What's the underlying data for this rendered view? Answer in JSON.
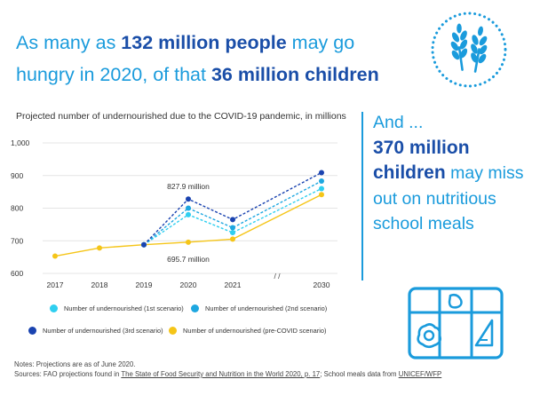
{
  "headline": {
    "part1": "As many as ",
    "bold1": "132 million people",
    "part2": " may go hungry in 2020, of that ",
    "bold2": "36 million children"
  },
  "side": {
    "line1": "And ...",
    "bold": "370 million children",
    "rest": " may miss out on nutritious school meals"
  },
  "icons": {
    "badge": "wheat-icon",
    "meal": "school-meal-tray-icon"
  },
  "colors": {
    "accent_light": "#1a9bdc",
    "accent_dark": "#1a4ea8",
    "scenario1": "#2fcff0",
    "scenario2": "#1ea7e0",
    "scenario3": "#1a43b0",
    "precovid": "#f5c518"
  },
  "chart_data": {
    "type": "line",
    "title": "Projected number of undernourished due to the COVID-19 pandemic, in millions",
    "categories": [
      "2017",
      "2018",
      "2019",
      "2020",
      "2021",
      "2030"
    ],
    "axis_break_label": "/ /",
    "yticks": [
      "1,000",
      "900",
      "800",
      "700",
      "600"
    ],
    "ylim": [
      600,
      1000
    ],
    "series": [
      {
        "name": "Number of undernourished (1st scenario)",
        "color": "#2fcff0",
        "dashed": true,
        "values": [
          null,
          null,
          687.8,
          780,
          725,
          860
        ]
      },
      {
        "name": "Number of undernourished (2nd scenario)",
        "color": "#1ea7e0",
        "dashed": true,
        "values": [
          null,
          null,
          687.8,
          800,
          740,
          883
        ]
      },
      {
        "name": "Number of undernourished (3rd scenario)",
        "color": "#1a43b0",
        "dashed": true,
        "values": [
          null,
          null,
          687.8,
          827.9,
          765,
          909
        ]
      },
      {
        "name": "Number of undernourished (pre-COVID scenario)",
        "color": "#f5c518",
        "dashed": false,
        "values": [
          653,
          678,
          687.8,
          695.7,
          705,
          841.4
        ]
      }
    ],
    "annotations": [
      {
        "text": "827.9 million",
        "x": "2020",
        "y": 827.9
      },
      {
        "text": "695.7 million",
        "x": "2020",
        "y": 695.7
      }
    ]
  },
  "notes": {
    "line1": "Notes: Projections are as of June 2020.",
    "sources_prefix": "Sources:  FAO projections found in ",
    "sources_link1": "The State of Food Security and Nutrition in the World 2020, p. 17",
    "sources_mid": "; School meals data from ",
    "sources_link2": "UNICEF/WFP"
  }
}
